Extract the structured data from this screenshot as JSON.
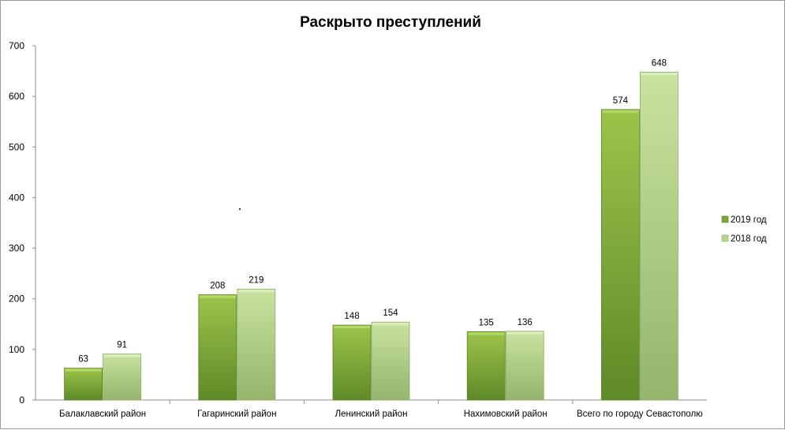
{
  "chart_data": {
    "type": "bar",
    "title": "Раскрыто  преступлений",
    "categories": [
      "Балаклавский район",
      "Гагаринский район",
      "Ленинский район",
      "Нахимовский район",
      "Всего по городу Севастополю"
    ],
    "series": [
      {
        "name": "2019 год",
        "values": [
          63,
          208,
          148,
          135,
          574
        ],
        "color": "#7ea536"
      },
      {
        "name": "2018 год",
        "values": [
          91,
          219,
          154,
          136,
          648
        ],
        "color": "#b5d48c"
      }
    ],
    "xlabel": "",
    "ylabel": "",
    "ylim": [
      0,
      700
    ],
    "yticks": [
      0,
      100,
      200,
      300,
      400,
      500,
      600,
      700
    ],
    "grid": false,
    "legend": "right",
    "data_labels": true
  }
}
